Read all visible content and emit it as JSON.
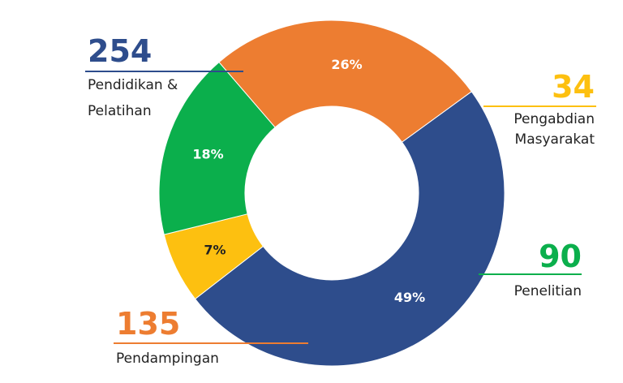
{
  "chart_data": {
    "type": "pie",
    "variant": "donut",
    "slices": [
      {
        "label": "Pendidikan & Pelatihan",
        "value": 254,
        "percent_label": "49%",
        "color": "#2E4D8C",
        "pct_color": "#ffffff"
      },
      {
        "label": "Pengabdian Masyarakat",
        "value": 34,
        "percent_label": "7%",
        "color": "#FDC010",
        "pct_color": "#222222"
      },
      {
        "label": "Penelitian",
        "value": 90,
        "percent_label": "18%",
        "color": "#0BAF4C",
        "pct_color": "#ffffff"
      },
      {
        "label": "Pendampingan",
        "value": 135,
        "percent_label": "26%",
        "color": "#ED7D31",
        "pct_color": "#ffffff"
      }
    ],
    "callouts": [
      {
        "value": "254",
        "lines": [
          "Pendidikan &",
          "Pelatihan"
        ],
        "color": "#2E4D8C"
      },
      {
        "value": "34",
        "lines": [
          "Pengabdian",
          "Masyarakat"
        ],
        "color": "#FDC010"
      },
      {
        "value": "90",
        "lines": [
          "Penelitian"
        ],
        "color": "#0BAF4C"
      },
      {
        "value": "135",
        "lines": [
          "Pendampingan"
        ],
        "color": "#ED7D31"
      }
    ]
  }
}
